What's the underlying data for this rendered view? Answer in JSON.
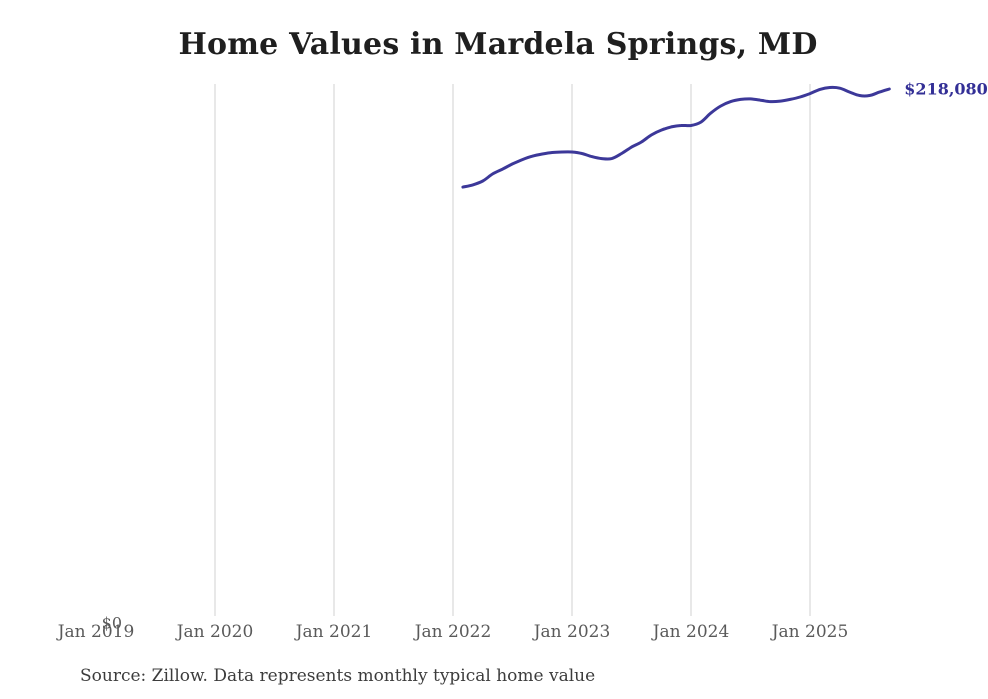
{
  "chart": {
    "title": "Home Values in Mardela Springs, MD",
    "end_label": "$218,080",
    "y_axis": {
      "zero_label": "$0"
    },
    "source_note": "Source: Zillow. Data represents monthly typical home value",
    "colors": {
      "line": "#3c3899",
      "end_label": "#332f96",
      "grid": "#d2d2d2",
      "title": "#1f1f1f",
      "tick": "#5a5a5a",
      "source": "#3c3c3c"
    }
  },
  "chart_data": {
    "type": "line",
    "title": "Home Values in Mardela Springs, MD",
    "xlabel": "",
    "ylabel": "",
    "legend": "none",
    "grid": "vertical-only",
    "ylim": [
      0,
      228000
    ],
    "x_tick_labels": [
      "Jan 2019",
      "Jan 2020",
      "Jan 2021",
      "Jan 2022",
      "Jan 2023",
      "Jan 2024",
      "Jan 2025"
    ],
    "gridline_months": [
      "Jan 2020",
      "Jan 2021",
      "Jan 2022",
      "Jan 2023",
      "Jan 2024",
      "Jan 2025"
    ],
    "series": [
      {
        "name": "Monthly typical home value",
        "first_point_month": "Feb 2022",
        "last_point_month": "Sep 2025",
        "final_value": 218080,
        "final_value_label": "$218,080",
        "values": [
          177800,
          178700,
          180300,
          183200,
          185200,
          187300,
          189100,
          190500,
          191400,
          192000,
          192200,
          192200,
          191600,
          190300,
          189500,
          189500,
          191600,
          194200,
          196300,
          199200,
          201200,
          202500,
          203100,
          203100,
          204500,
          208200,
          211100,
          212900,
          213800,
          214000,
          213500,
          212900,
          213100,
          213800,
          214800,
          216200,
          217900,
          218700,
          218400,
          216800,
          215400,
          215400,
          216800,
          218080
        ]
      }
    ]
  }
}
